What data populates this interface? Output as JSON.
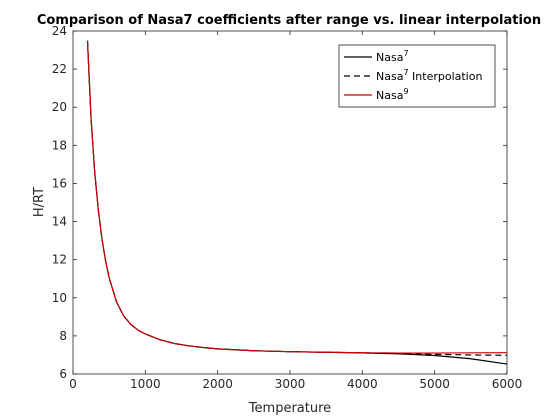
{
  "chart_data": {
    "type": "line",
    "title": "Comparison of Nasa7 coefficients after range vs. linear interpolation",
    "xlabel": "Temperature",
    "ylabel": "H/RT",
    "xlim": [
      0,
      6000
    ],
    "ylim": [
      6,
      24
    ],
    "xticks": [
      0,
      1000,
      2000,
      3000,
      4000,
      5000,
      6000
    ],
    "yticks": [
      6,
      8,
      10,
      12,
      14,
      16,
      18,
      20,
      22,
      24
    ],
    "grid": false,
    "legend_position": "top-right",
    "series": [
      {
        "name": "Nasa",
        "name_sup": "7",
        "color": "#000000",
        "style": "solid",
        "x": [
          200,
          250,
          300,
          350,
          400,
          450,
          500,
          600,
          700,
          800,
          900,
          1000,
          1200,
          1400,
          1600,
          1800,
          2000,
          2500,
          3000,
          3500,
          4000,
          4500,
          5000,
          5500,
          6000
        ],
        "y": [
          23.5,
          19.4,
          16.6,
          14.6,
          13.1,
          11.95,
          11.05,
          9.8,
          9.05,
          8.6,
          8.3,
          8.1,
          7.8,
          7.6,
          7.48,
          7.39,
          7.32,
          7.22,
          7.17,
          7.14,
          7.11,
          7.06,
          6.97,
          6.8,
          6.52
        ]
      },
      {
        "name": "Nasa",
        "name_sup": "7",
        "name_suffix": " Interpolation",
        "color": "#000000",
        "style": "dashed",
        "x": [
          200,
          250,
          300,
          350,
          400,
          450,
          500,
          600,
          700,
          800,
          900,
          1000,
          1200,
          1400,
          1600,
          1800,
          2000,
          2500,
          3000,
          3500,
          4000,
          4500,
          5000,
          5500,
          6000
        ],
        "y": [
          23.5,
          19.4,
          16.6,
          14.6,
          13.1,
          11.95,
          11.05,
          9.8,
          9.05,
          8.6,
          8.3,
          8.1,
          7.8,
          7.6,
          7.48,
          7.39,
          7.32,
          7.22,
          7.17,
          7.14,
          7.11,
          7.07,
          7.03,
          7.0,
          6.98
        ]
      },
      {
        "name": "Nasa",
        "name_sup": "9",
        "color": "#cc0000",
        "style": "solid",
        "x": [
          200,
          250,
          300,
          350,
          400,
          450,
          500,
          600,
          700,
          800,
          900,
          1000,
          1200,
          1400,
          1600,
          1800,
          2000,
          2500,
          3000,
          3500,
          4000,
          4500,
          5000,
          5500,
          6000
        ],
        "y": [
          23.5,
          19.4,
          16.6,
          14.6,
          13.1,
          11.95,
          11.05,
          9.8,
          9.05,
          8.6,
          8.3,
          8.1,
          7.8,
          7.6,
          7.48,
          7.39,
          7.32,
          7.22,
          7.17,
          7.14,
          7.12,
          7.1,
          7.1,
          7.11,
          7.12
        ]
      }
    ]
  }
}
